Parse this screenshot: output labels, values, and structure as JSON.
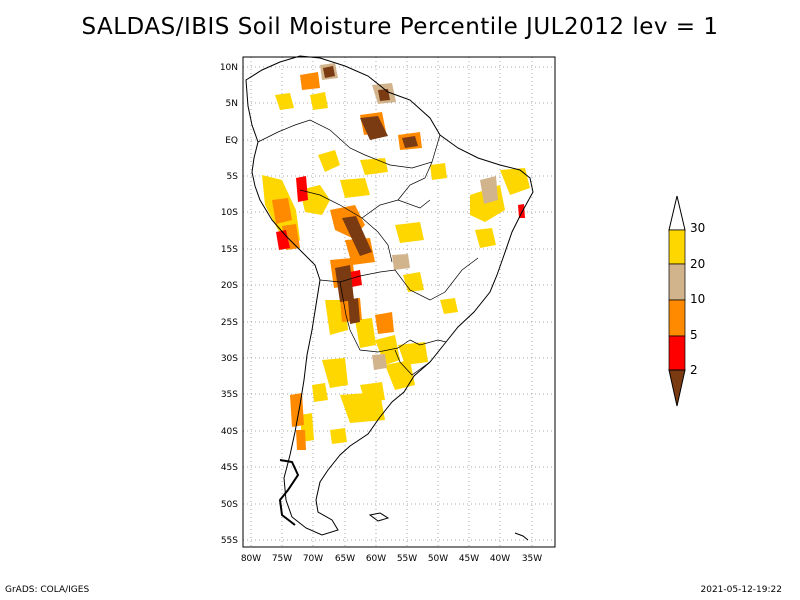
{
  "title": "SALDAS/IBIS Soil Moisture Percentile JUL2012 lev = 1",
  "colors": {
    "c2": "#7a3b12",
    "c2_5": "#ff0000",
    "c5_10": "#ff8a00",
    "c10_20": "#d2b48c",
    "c20_30": "#ffd700",
    "c30plus": "#ffffff",
    "grid": "#aaaaaa",
    "coast": "#000000"
  },
  "lat_labels": [
    "10N",
    "5N",
    "EQ",
    "5S",
    "10S",
    "15S",
    "20S",
    "25S",
    "30S",
    "35S",
    "40S",
    "45S",
    "50S",
    "55S"
  ],
  "lon_labels": [
    "80W",
    "75W",
    "70W",
    "65W",
    "60W",
    "55W",
    "50W",
    "45W",
    "40W",
    "35W"
  ],
  "colorbar": {
    "labels": [
      "2",
      "5",
      "10",
      "20",
      "30"
    ]
  },
  "footer": {
    "credit": "GrADS: COLA/IGES",
    "timestamp": "2021-05-12-19:22"
  }
}
